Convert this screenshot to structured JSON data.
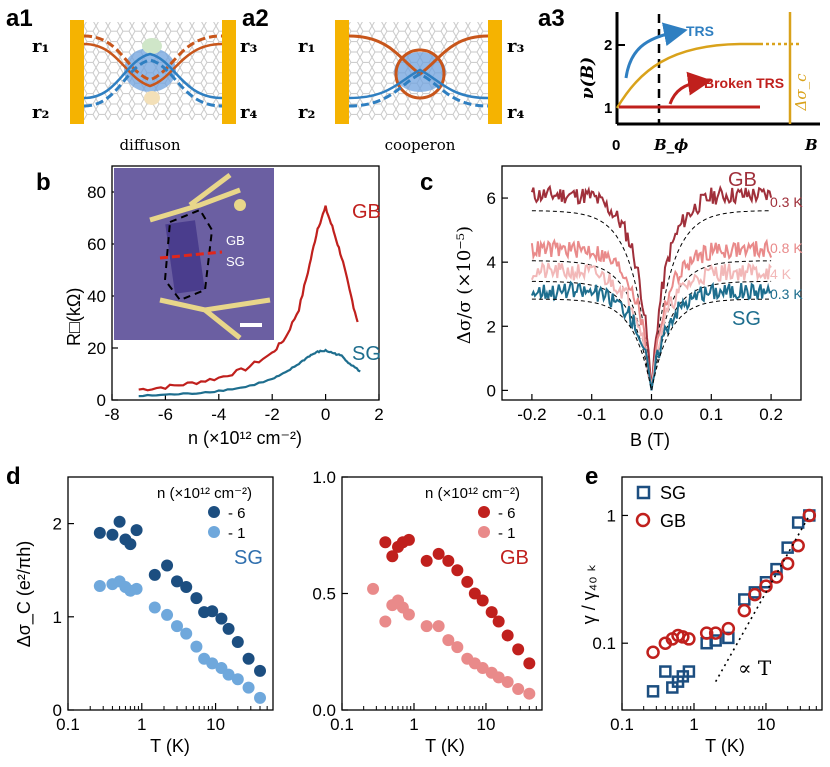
{
  "panels": {
    "a1": {
      "label": "a1",
      "caption": "diffuson"
    },
    "a2": {
      "label": "a2",
      "caption": "cooperon"
    },
    "a3": {
      "label": "a3",
      "ylabel": "ν(B)",
      "y_ticks": [
        "2",
        "1"
      ],
      "x_ticks": [
        "0",
        "B_ϕ",
        "B"
      ],
      "trs_label": "TRS",
      "broken_label": "Broken TRS",
      "delta_label": "Δσ_c"
    },
    "b": {
      "label": "b"
    },
    "c": {
      "label": "c"
    },
    "d": {
      "label": "d"
    },
    "e": {
      "label": "e"
    }
  },
  "terminals": {
    "r1": "r₁",
    "r2": "r₂",
    "r3": "r₃",
    "r4": "r₄"
  },
  "colors": {
    "gb_dark": "#a0303b",
    "gb_red": "#c0201d",
    "gb_light": "#e98a8a",
    "sg_dark": "#1c4e80",
    "sg_teal": "#1e6e8e",
    "sg_light": "#6fa8dc",
    "orange": "#c8561b",
    "blue": "#2f7fc1",
    "gold": "#d9a21b"
  },
  "chart_data": [
    {
      "id": "b",
      "type": "line",
      "xlabel": "n (×10¹² cm⁻²)",
      "ylabel": "R□(kΩ)",
      "xlim": [
        -8,
        2
      ],
      "ylim": [
        0,
        90
      ],
      "xticks": [
        -8,
        -6,
        -4,
        -2,
        0,
        2
      ],
      "yticks": [
        0,
        20,
        40,
        60,
        80
      ],
      "series": [
        {
          "name": "GB",
          "x": [
            -7,
            -6,
            -5,
            -4,
            -3,
            -2,
            -1.5,
            -1,
            -0.6,
            -0.3,
            0,
            0.3,
            0.6,
            0.9,
            1.2
          ],
          "y": [
            4,
            5,
            6.5,
            8.5,
            12,
            18,
            24,
            35,
            52,
            66,
            74,
            65,
            55,
            42,
            30
          ]
        },
        {
          "name": "SG",
          "x": [
            -7,
            -6,
            -5,
            -4,
            -3,
            -2,
            -1.5,
            -1,
            -0.6,
            -0.3,
            0,
            0.3,
            0.6,
            0.9,
            1.3
          ],
          "y": [
            1.5,
            2,
            2.5,
            3.5,
            5,
            8,
            10.5,
            14,
            17,
            18.5,
            19,
            18,
            17,
            14,
            11
          ]
        }
      ],
      "inset_labels": [
        "GB",
        "SG"
      ]
    },
    {
      "id": "c",
      "type": "line",
      "xlabel": "B (T)",
      "ylabel": "Δσ/σ (×10⁻⁵)",
      "xlim": [
        -0.25,
        0.25
      ],
      "ylim": [
        -0.3,
        7
      ],
      "xticks": [
        -0.2,
        -0.1,
        0.0,
        0.1,
        0.2
      ],
      "yticks": [
        0,
        2,
        4,
        6
      ],
      "series": [
        {
          "name": "GB 0.3 K",
          "label": "0.3 K",
          "plateau": 6.1
        },
        {
          "name": "GB 0.8 K",
          "label": "0.8 K",
          "plateau": 4.4
        },
        {
          "name": "GB 4 K",
          "label": "4 K",
          "plateau": 3.7
        },
        {
          "name": "SG 0.3 K",
          "label": "0.3 K",
          "plateau": 3.1
        }
      ],
      "group_labels": [
        "GB",
        "SG"
      ]
    },
    {
      "id": "d-left",
      "type": "scatter",
      "xscale": "log",
      "xlabel": "T (K)",
      "ylabel": "Δσ_C (e²/πh)",
      "xlim": [
        0.1,
        60
      ],
      "ylim": [
        0,
        2.5
      ],
      "yticks": [
        0,
        1,
        2
      ],
      "xticks": [
        0.1,
        1,
        10
      ],
      "legend_title": "n (×10¹² cm⁻²)",
      "group_label": "SG",
      "series": [
        {
          "name": "- 6",
          "x": [
            0.27,
            0.4,
            0.5,
            0.6,
            0.7,
            0.85,
            1.5,
            2.2,
            3,
            4,
            5.5,
            7,
            9,
            12,
            15,
            20,
            28,
            40
          ],
          "y": [
            1.9,
            1.88,
            2.02,
            1.83,
            1.78,
            1.93,
            1.45,
            1.55,
            1.38,
            1.32,
            1.2,
            1.05,
            1.06,
            0.98,
            0.87,
            0.73,
            0.55,
            0.42
          ]
        },
        {
          "name": "- 1",
          "x": [
            0.27,
            0.4,
            0.5,
            0.6,
            0.7,
            0.85,
            1.5,
            2.2,
            3,
            4,
            5.5,
            7,
            9,
            12,
            15,
            20,
            28,
            40
          ],
          "y": [
            1.33,
            1.35,
            1.38,
            1.32,
            1.28,
            1.3,
            1.1,
            1.02,
            0.9,
            0.82,
            0.68,
            0.55,
            0.5,
            0.45,
            0.38,
            0.33,
            0.24,
            0.13
          ]
        }
      ]
    },
    {
      "id": "d-right",
      "type": "scatter",
      "xscale": "log",
      "xlabel": "T (K)",
      "xlim": [
        0.1,
        60
      ],
      "ylim": [
        0,
        1.0
      ],
      "yticks": [
        0.0,
        0.5,
        1.0
      ],
      "xticks": [
        0.1,
        1,
        10
      ],
      "legend_title": "n (×10¹² cm⁻²)",
      "group_label": "GB",
      "series": [
        {
          "name": "- 6",
          "x": [
            0.4,
            0.5,
            0.6,
            0.7,
            0.85,
            1.5,
            2.2,
            3,
            4,
            5.5,
            7,
            9,
            12,
            15,
            20,
            28,
            40
          ],
          "y": [
            0.72,
            0.66,
            0.7,
            0.72,
            0.73,
            0.64,
            0.67,
            0.64,
            0.6,
            0.55,
            0.5,
            0.47,
            0.42,
            0.38,
            0.32,
            0.26,
            0.2
          ]
        },
        {
          "name": "- 1",
          "x": [
            0.27,
            0.4,
            0.5,
            0.6,
            0.7,
            0.85,
            1.5,
            2.2,
            3,
            4,
            5.5,
            7,
            9,
            12,
            15,
            20,
            28,
            40
          ],
          "y": [
            0.52,
            0.38,
            0.45,
            0.47,
            0.44,
            0.41,
            0.36,
            0.36,
            0.3,
            0.27,
            0.22,
            0.2,
            0.18,
            0.16,
            0.14,
            0.12,
            0.09,
            0.07
          ]
        }
      ]
    },
    {
      "id": "e",
      "type": "scatter",
      "xscale": "log",
      "yscale": "log",
      "xlabel": "T (K)",
      "ylabel": "γ / γ₄₀ ₖ",
      "xlim": [
        0.1,
        60
      ],
      "ylim": [
        0.03,
        2
      ],
      "xticks": [
        0.1,
        1,
        10
      ],
      "yticks": [
        0.1,
        1
      ],
      "annotation": "∝ T",
      "series": [
        {
          "name": "SG",
          "x": [
            0.27,
            0.4,
            0.5,
            0.6,
            0.7,
            0.85,
            1.5,
            2,
            3,
            5,
            7,
            10,
            14,
            20,
            28,
            40
          ],
          "y": [
            0.042,
            0.06,
            0.045,
            0.05,
            0.055,
            0.06,
            0.1,
            0.105,
            0.11,
            0.22,
            0.25,
            0.3,
            0.38,
            0.56,
            0.88,
            1.0
          ]
        },
        {
          "name": "GB",
          "x": [
            0.27,
            0.4,
            0.5,
            0.6,
            0.7,
            0.85,
            1.5,
            2,
            3,
            5,
            7,
            10,
            14,
            20,
            28,
            40
          ],
          "y": [
            0.085,
            0.1,
            0.108,
            0.115,
            0.112,
            0.108,
            0.12,
            0.12,
            0.13,
            0.18,
            0.24,
            0.28,
            0.33,
            0.42,
            0.58,
            1.0
          ]
        }
      ]
    }
  ]
}
